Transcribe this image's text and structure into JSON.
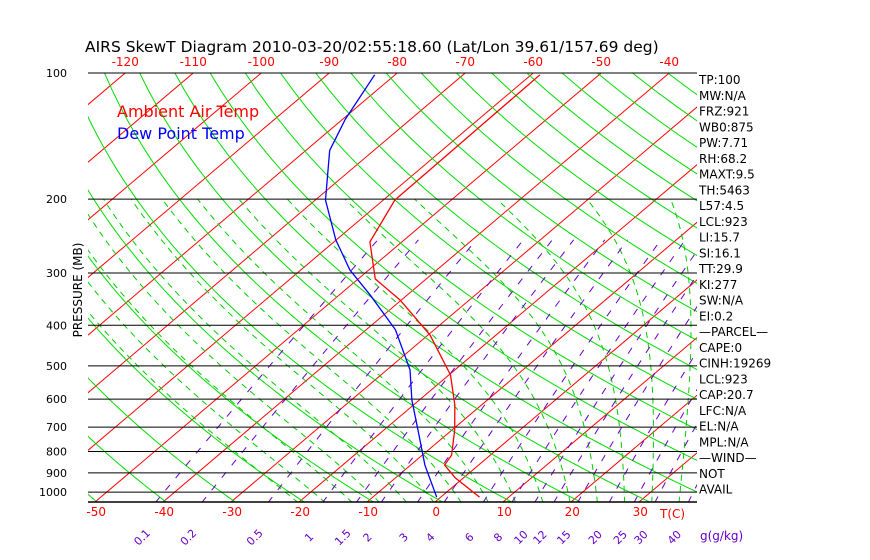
{
  "chart_data": {
    "type": "line",
    "subtype": "skew-t log-p",
    "title": "AIRS SkewT Diagram 2010-03-20/02:55:18.60 (Lat/Lon 39.61/157.69 deg)",
    "ylabel": "PRESSURE (MB)",
    "xlabel": "T(C)",
    "mixing_ratio_unit_label": "g(g/kg)",
    "ylim": [
      1050,
      100
    ],
    "pressure_ticks": [
      100,
      200,
      300,
      400,
      500,
      600,
      700,
      800,
      900,
      1000
    ],
    "bottom_temp_ticks": [
      -50,
      -40,
      -30,
      -20,
      -10,
      0,
      10,
      20,
      30
    ],
    "top_temp_ticks": [
      -120,
      -110,
      -100,
      -90,
      -80,
      -70,
      -60,
      -50,
      -40
    ],
    "mixing_ratio_ticks": [
      "0.1",
      "0.2",
      "0.5",
      "1",
      "1.5",
      "2",
      "3",
      "4",
      "6",
      "8",
      "10",
      "12",
      "15",
      "20",
      "25",
      "30",
      "40"
    ],
    "legend": [
      {
        "name": "Ambient Air Temp",
        "color": "#ff0000"
      },
      {
        "name": "Dew Point Temp",
        "color": "#0000ff"
      }
    ],
    "series": [
      {
        "name": "Ambient Air Temp",
        "color": "#ff0000",
        "p": [
          1028,
          925,
          862,
          816,
          711,
          620,
          525,
          422,
          348,
          310,
          253,
          201,
          170,
          101
        ],
        "t": [
          5.7,
          -1.2,
          -5.0,
          -5.7,
          -9.6,
          -13.9,
          -19.8,
          -29.7,
          -40.2,
          -47.5,
          -54.7,
          -58.3,
          -58.4,
          -58.7
        ]
      },
      {
        "name": "Dew Point Temp",
        "color": "#0000ff",
        "p": [
          1028,
          862,
          711,
          603,
          511,
          410,
          339,
          295,
          250,
          201,
          153,
          129,
          101
        ],
        "t": [
          -0.6,
          -7.9,
          -15.0,
          -21.1,
          -26.6,
          -35.7,
          -45.4,
          -52.8,
          -60.1,
          -68.5,
          -76.5,
          -79.6,
          -83.0
        ]
      }
    ],
    "colors": {
      "isotherm": "#ff0000",
      "dry_adiabat": "#00dd00",
      "moist_adiabat": "#00cc00",
      "mixing_ratio": "#6600cc",
      "axis": "#000000"
    }
  },
  "stats": [
    "TP:100",
    "MW:N/A",
    "FRZ:921",
    "WB0:875",
    "PW:7.71",
    "RH:68.2",
    "MAXT:9.5",
    "TH:5463",
    "L57:4.5",
    "LCL:923",
    "LI:15.7",
    "SI:16.1",
    "TT:29.9",
    "KI:277",
    "SW:N/A",
    " EI:0.2",
    "—PARCEL—",
    "CAPE:0",
    "CINH:19269",
    "LCL:923",
    "CAP:20.7",
    "LFC:N/A",
    "EL:N/A",
    "MPL:N/A",
    "—WIND—",
    " NOT",
    "AVAIL"
  ]
}
